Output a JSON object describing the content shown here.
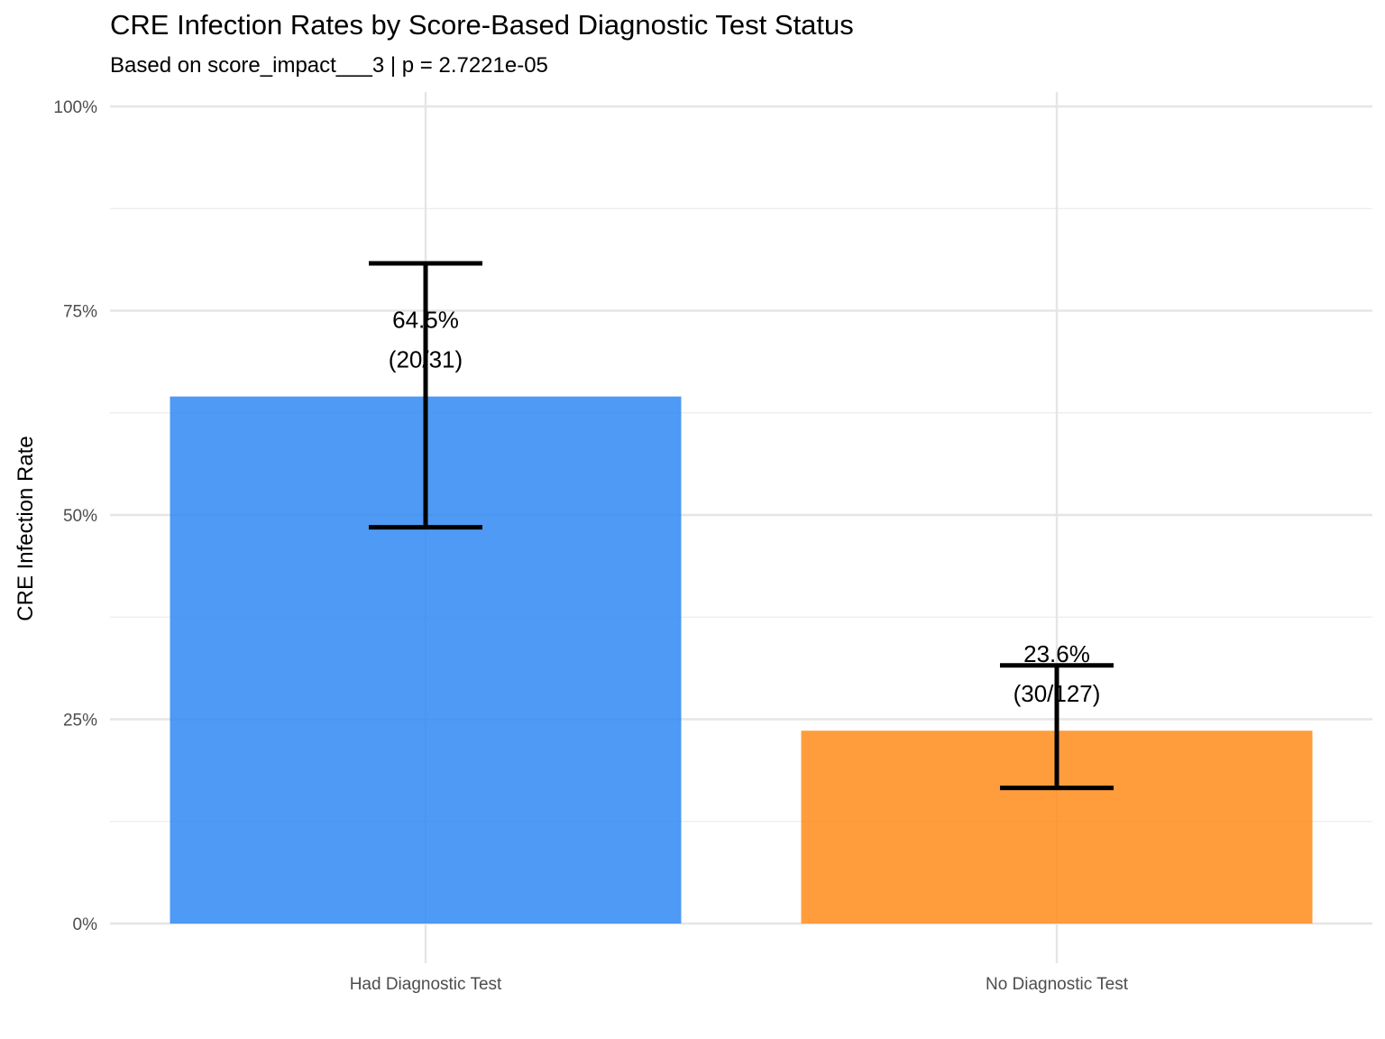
{
  "chart_data": {
    "type": "bar",
    "title": "CRE Infection Rates by Score-Based Diagnostic Test Status",
    "subtitle": "Based on score_impact___3 | p = 2.7221e-05",
    "xlabel": "",
    "ylabel": "CRE Infection Rate",
    "categories": [
      "Had Diagnostic Test",
      "No Diagnostic Test"
    ],
    "values": [
      0.645,
      0.236
    ],
    "error_low": [
      0.485,
      0.166
    ],
    "error_high": [
      0.808,
      0.316
    ],
    "labels_pct": [
      "64.5%",
      "23.6%"
    ],
    "labels_count": [
      "(20/31)",
      "(30/127)"
    ],
    "colors": [
      "#2F88F2",
      "#FF8C1A"
    ],
    "ylim": [
      0,
      1
    ],
    "yticks": [
      0,
      0.25,
      0.5,
      0.75,
      1
    ],
    "ytick_labels": [
      "0%",
      "25%",
      "50%",
      "75%",
      "100%"
    ],
    "grid": true,
    "legend": "none"
  }
}
